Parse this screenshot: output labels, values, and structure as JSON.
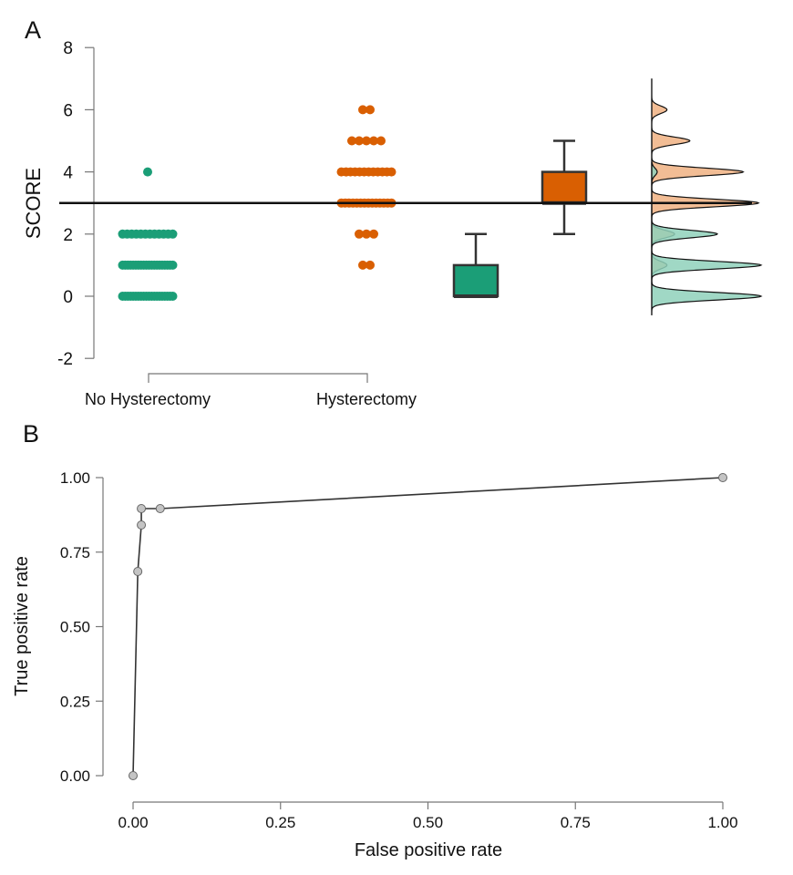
{
  "chart_data": [
    {
      "panel_label": "A",
      "type": "scatter",
      "ylabel": "SCORE",
      "ylim": [
        -2,
        8
      ],
      "yticks": [
        "-2",
        "0",
        "2",
        "4",
        "6",
        "8"
      ],
      "categories": [
        "No Hysterectomy",
        "Hysterectomy"
      ],
      "threshold": 3,
      "colors": {
        "No Hysterectomy": "#1b9e77",
        "Hysterectomy": "#d95f02",
        "No Hysterectomy_density": "#8fd1bb",
        "Hysterectomy_density": "#f0b283"
      },
      "dots": [
        {
          "group": "No Hysterectomy",
          "counts": {
            "0": 20,
            "1": 20,
            "2": 12,
            "4": 1
          }
        },
        {
          "group": "Hysterectomy",
          "counts": {
            "1": 2,
            "2": 3,
            "3": 14,
            "4": 12,
            "5": 5,
            "6": 2
          }
        }
      ],
      "boxplots": [
        {
          "group": "No Hysterectomy",
          "whisker_low": 0,
          "q1": 0,
          "median": 0,
          "q3": 1,
          "whisker_high": 2
        },
        {
          "group": "Hysterectomy",
          "whisker_low": 2,
          "q1": 3,
          "median": 3,
          "q3": 4,
          "whisker_high": 5
        }
      ],
      "density": "kernel density per group, drawn as half-violin"
    },
    {
      "panel_label": "B",
      "type": "line",
      "xlabel": "False positive rate",
      "ylabel": "True positive rate",
      "xlim": [
        0,
        1
      ],
      "ylim": [
        0,
        1
      ],
      "xticks": [
        "0.00",
        "0.25",
        "0.50",
        "0.75",
        "1.00"
      ],
      "yticks": [
        "0.00",
        "0.25",
        "0.50",
        "0.75",
        "1.00"
      ],
      "points": [
        {
          "x": 0.0,
          "y": 0.0
        },
        {
          "x": 0.008,
          "y": 0.685
        },
        {
          "x": 0.014,
          "y": 0.841
        },
        {
          "x": 0.014,
          "y": 0.896
        },
        {
          "x": 0.046,
          "y": 0.896
        },
        {
          "x": 1.0,
          "y": 1.0
        }
      ]
    }
  ]
}
